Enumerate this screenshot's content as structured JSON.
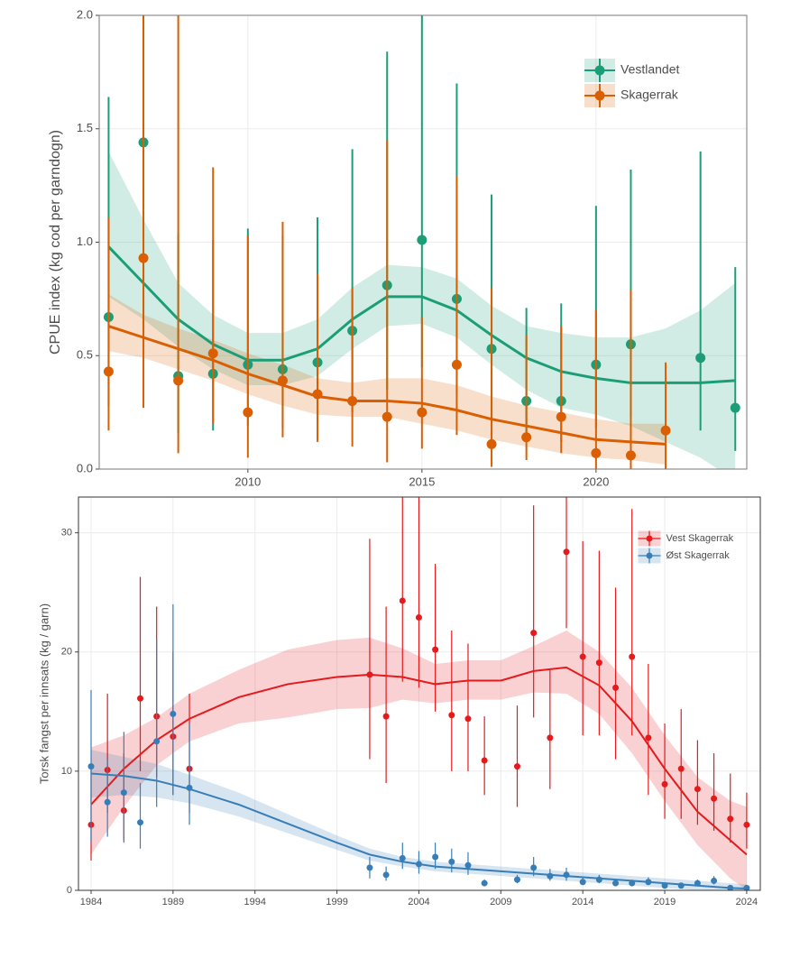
{
  "chart_data": [
    {
      "type": "errorbar",
      "ylabel": "CPUE index (kg cod per garndogn)",
      "xlim": [
        2005.73,
        2024.33
      ],
      "ylim": [
        0,
        2
      ],
      "xticks": [
        2010,
        2015,
        2020
      ],
      "yticks": [
        {
          "value": 0,
          "label": "0.0"
        },
        0.5,
        {
          "value": 1,
          "label": "1.0"
        },
        1.5,
        {
          "value": 2,
          "label": "2.0"
        }
      ],
      "grid": true,
      "legend": "top-right",
      "series": [
        {
          "name": "Vestlandet",
          "color": "#1b9e77",
          "x": [
            2006,
            2007,
            2008,
            2009,
            2010,
            2011,
            2012,
            2013,
            2014,
            2015,
            2016,
            2017,
            2018,
            2019,
            2020,
            2021,
            2023,
            2024
          ],
          "values": [
            0.67,
            1.44,
            0.41,
            0.42,
            0.46,
            0.44,
            0.47,
            0.61,
            0.81,
            1.01,
            0.75,
            0.53,
            0.3,
            0.3,
            0.46,
            0.55,
            0.49,
            0.27
          ],
          "lower": [
            0.28,
            0.62,
            0.16,
            0.17,
            0.19,
            0.18,
            0.2,
            0.25,
            0.35,
            0.45,
            0.33,
            0.22,
            0.12,
            0.12,
            0.18,
            0.23,
            0.17,
            0.08
          ],
          "upper": [
            1.64,
            2.2,
            1.04,
            1.01,
            1.06,
            1.03,
            1.11,
            1.41,
            1.84,
            2.2,
            1.7,
            1.21,
            0.71,
            0.73,
            1.16,
            1.32,
            1.4,
            0.89
          ],
          "smooth_x": [
            2006,
            2007,
            2008,
            2009,
            2010,
            2011,
            2012,
            2013,
            2014,
            2015,
            2016,
            2017,
            2018,
            2019,
            2020,
            2021,
            2022,
            2023,
            2024
          ],
          "smooth": [
            0.98,
            0.82,
            0.66,
            0.55,
            0.48,
            0.48,
            0.53,
            0.66,
            0.76,
            0.76,
            0.7,
            0.59,
            0.49,
            0.43,
            0.4,
            0.38,
            0.38,
            0.38,
            0.39
          ],
          "band_lower": [
            0.76,
            0.66,
            0.54,
            0.44,
            0.37,
            0.37,
            0.41,
            0.53,
            0.63,
            0.64,
            0.58,
            0.46,
            0.35,
            0.27,
            0.24,
            0.19,
            0.12,
            0.05,
            -0.05
          ],
          "band_upper": [
            1.4,
            1.1,
            0.82,
            0.68,
            0.6,
            0.6,
            0.66,
            0.8,
            0.9,
            0.89,
            0.84,
            0.72,
            0.63,
            0.6,
            0.58,
            0.58,
            0.62,
            0.7,
            0.82
          ]
        },
        {
          "name": "Skagerrak",
          "color": "#d95f02",
          "x": [
            2006,
            2007,
            2008,
            2009,
            2010,
            2011,
            2012,
            2013,
            2014,
            2015,
            2016,
            2017,
            2018,
            2019,
            2020,
            2021,
            2022
          ],
          "values": [
            0.43,
            0.93,
            0.39,
            0.51,
            0.25,
            0.39,
            0.33,
            0.3,
            0.23,
            0.25,
            0.46,
            0.11,
            0.14,
            0.23,
            0.07,
            0.06,
            0.17
          ],
          "lower": [
            0.17,
            0.27,
            0.07,
            0.2,
            0.05,
            0.14,
            0.12,
            0.1,
            0.03,
            0.09,
            0.15,
            0.01,
            0.04,
            0.07,
            0.0,
            0.0,
            0.0
          ],
          "upper": [
            1.11,
            2.2,
            2.2,
            1.33,
            1.03,
            1.09,
            0.86,
            0.8,
            1.45,
            0.67,
            1.29,
            0.8,
            0.59,
            0.63,
            0.7,
            0.79,
            0.47
          ],
          "smooth_x": [
            2006,
            2007,
            2008,
            2009,
            2010,
            2011,
            2012,
            2013,
            2014,
            2015,
            2016,
            2017,
            2018,
            2019,
            2020,
            2021,
            2022
          ],
          "smooth": [
            0.63,
            0.58,
            0.53,
            0.48,
            0.42,
            0.37,
            0.32,
            0.3,
            0.3,
            0.29,
            0.26,
            0.22,
            0.19,
            0.16,
            0.13,
            0.12,
            0.11
          ],
          "band_lower": [
            0.52,
            0.49,
            0.44,
            0.39,
            0.33,
            0.28,
            0.24,
            0.23,
            0.23,
            0.2,
            0.17,
            0.13,
            0.1,
            0.07,
            0.05,
            0.04,
            0.02
          ],
          "band_upper": [
            0.77,
            0.68,
            0.62,
            0.57,
            0.51,
            0.46,
            0.4,
            0.38,
            0.4,
            0.4,
            0.37,
            0.32,
            0.28,
            0.25,
            0.22,
            0.2,
            0.2
          ]
        }
      ]
    },
    {
      "type": "errorbar",
      "ylabel": "Torsk fangst per innsats (kg / garn)",
      "xlim": [
        1983.23,
        2024.83
      ],
      "ylim": [
        0,
        33
      ],
      "xticks": [
        1984,
        1989,
        1994,
        1999,
        2004,
        2009,
        2014,
        2019,
        2024
      ],
      "yticks": [
        0,
        10,
        20,
        30
      ],
      "grid": true,
      "legend": "top-right",
      "series": [
        {
          "name": "Vest Skagerrak",
          "color": "#e41a1c",
          "x": [
            1984,
            1985,
            1986,
            1987,
            1988,
            1989,
            1990,
            2001,
            2002,
            2003,
            2004,
            2005,
            2006,
            2007,
            2008,
            2010,
            2011,
            2012,
            2013,
            2014,
            2015,
            2016,
            2017,
            2018,
            2019,
            2020,
            2021,
            2022,
            2023,
            2024
          ],
          "values": [
            5.5,
            10.1,
            6.7,
            16.1,
            14.6,
            12.9,
            10.2,
            18.1,
            14.6,
            24.3,
            22.9,
            20.2,
            14.7,
            14.4,
            10.9,
            10.4,
            21.6,
            12.8,
            28.4,
            19.6,
            19.1,
            17.0,
            19.6,
            12.8,
            8.9,
            10.2,
            8.5,
            7.7,
            6.0,
            5.5
          ],
          "lower": [
            2.5,
            6.5,
            4.2,
            10,
            9.5,
            8,
            6.5,
            11,
            9,
            17.5,
            17,
            15,
            10,
            10,
            8,
            7,
            14.5,
            8.5,
            22,
            13,
            13,
            11,
            13,
            8,
            6,
            6,
            5.5,
            5,
            4,
            3.5
          ],
          "upper": [
            10.5,
            16.5,
            11.5,
            26.3,
            23.8,
            20,
            16.5,
            29.5,
            23.8,
            34,
            33,
            27.4,
            21.8,
            20.7,
            14.6,
            15.5,
            32.3,
            18.5,
            34,
            29.3,
            28.5,
            25.4,
            32,
            19,
            14,
            15.2,
            12.6,
            11.5,
            9.8,
            8.2
          ],
          "smooth_x": [
            1984,
            1986,
            1988,
            1990,
            1993,
            1996,
            1999,
            2001,
            2003,
            2005,
            2007,
            2009,
            2011,
            2013,
            2015,
            2017,
            2019,
            2021,
            2023,
            2024
          ],
          "smooth": [
            7.2,
            10.2,
            12.6,
            14.4,
            16.2,
            17.3,
            17.9,
            18.1,
            17.9,
            17.3,
            17.6,
            17.6,
            18.4,
            18.7,
            17.2,
            14.2,
            10.2,
            6.6,
            4.2,
            3.0
          ],
          "band_lower": [
            3.0,
            7.0,
            10.5,
            12.5,
            14.0,
            14.5,
            15.2,
            15.3,
            16.0,
            15.7,
            16.0,
            16.0,
            16.6,
            16.5,
            14.8,
            11.5,
            7.5,
            3.8,
            1.0,
            0.0
          ],
          "band_upper": [
            12.0,
            13.0,
            14.5,
            16.5,
            18.5,
            20.2,
            21.0,
            21.2,
            20.3,
            19.0,
            19.3,
            19.3,
            20.5,
            21.8,
            20.0,
            17.0,
            13.0,
            9.5,
            7.5,
            7.0
          ]
        },
        {
          "name": "Øst Skagerrak",
          "color": "#377eb8",
          "x": [
            1984,
            1985,
            1986,
            1987,
            1988,
            1989,
            1990,
            2001,
            2002,
            2003,
            2004,
            2005,
            2006,
            2007,
            2008,
            2010,
            2011,
            2012,
            2013,
            2014,
            2015,
            2016,
            2017,
            2018,
            2019,
            2020,
            2021,
            2022,
            2023,
            2024
          ],
          "values": [
            10.4,
            7.4,
            8.2,
            5.7,
            12.5,
            14.8,
            8.6,
            1.9,
            1.3,
            2.7,
            2.2,
            2.8,
            2.4,
            2.1,
            0.6,
            0.9,
            1.9,
            1.2,
            1.3,
            0.7,
            0.9,
            0.6,
            0.6,
            0.7,
            0.4,
            0.4,
            0.6,
            0.8,
            0.2,
            0.2
          ],
          "lower": [
            4,
            4.5,
            4,
            3.5,
            7,
            8,
            5.5,
            1,
            0.8,
            1.8,
            1.4,
            1.8,
            1.5,
            1.3,
            0.4,
            0.6,
            1.2,
            0.8,
            0.8,
            0.5,
            0.6,
            0.4,
            0.4,
            0.5,
            0.3,
            0.3,
            0.4,
            0.5,
            0.1,
            0.1
          ],
          "upper": [
            16.8,
            11,
            13.3,
            9,
            21,
            24,
            14,
            2.8,
            2,
            4,
            3.3,
            4,
            3.5,
            3.2,
            0.9,
            1.3,
            2.8,
            1.8,
            1.9,
            1.1,
            1.3,
            0.9,
            0.9,
            1.1,
            0.6,
            0.6,
            0.9,
            1.2,
            0.3,
            0.3
          ],
          "smooth_x": [
            1984,
            1986,
            1988,
            1990,
            1993,
            1996,
            1999,
            2001,
            2003,
            2005,
            2007,
            2009,
            2011,
            2013,
            2015,
            2017,
            2019,
            2021,
            2023,
            2024
          ],
          "smooth": [
            9.8,
            9.6,
            9.2,
            8.5,
            7.2,
            5.6,
            4.0,
            3.0,
            2.4,
            2.0,
            1.8,
            1.6,
            1.4,
            1.2,
            1.0,
            0.8,
            0.6,
            0.4,
            0.2,
            0.15
          ],
          "band_lower": [
            7.8,
            8.0,
            7.8,
            7.3,
            6.2,
            4.8,
            3.4,
            2.5,
            2.0,
            1.6,
            1.4,
            1.2,
            1.0,
            0.8,
            0.6,
            0.4,
            0.2,
            0.0,
            0.0,
            0.0
          ],
          "band_upper": [
            11.8,
            11.2,
            10.6,
            9.7,
            8.2,
            6.4,
            4.6,
            3.5,
            2.8,
            2.4,
            2.2,
            2.0,
            1.8,
            1.6,
            1.4,
            1.2,
            1.0,
            0.8,
            0.6,
            0.5
          ]
        }
      ]
    }
  ]
}
